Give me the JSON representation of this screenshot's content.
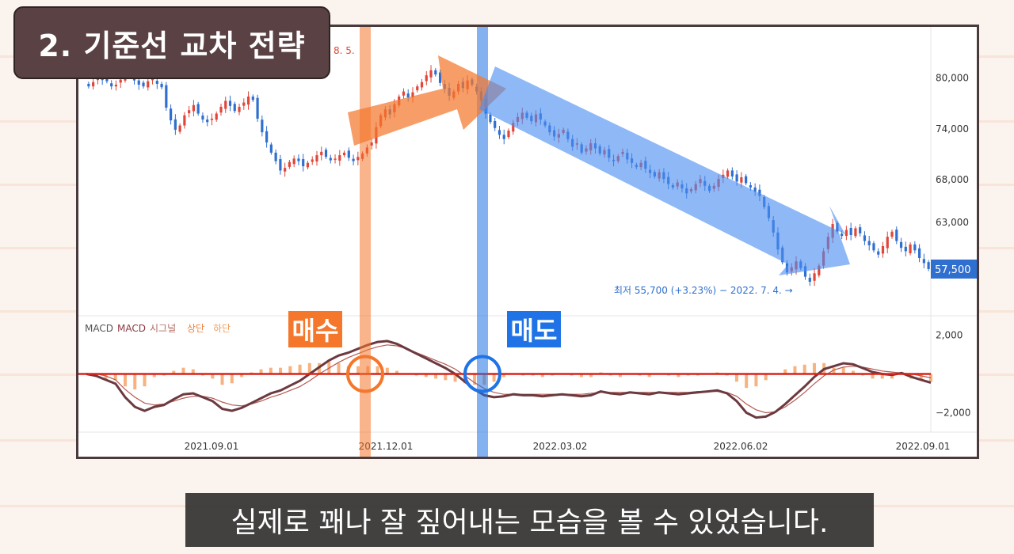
{
  "title": "2. 기준선 교차 전략",
  "subtitle": "실제로 꽤나 잘 짚어내는 모습을 볼 수 있었습니다.",
  "buy_label": "매수",
  "sell_label": "매도",
  "colors": {
    "up_candle": "#e0463a",
    "down_candle": "#2f6fcf",
    "buy_highlight": "#f4772c",
    "sell_highlight": "#1f73e6",
    "macd_line": "#6b3a40",
    "signal_line": "#b55a52",
    "baseline": "#d8231a",
    "histogram": "#f4a56a"
  },
  "chart_data": [
    {
      "type": "candlestick",
      "top_label_fragment": "8. 5.",
      "x_ticks": [
        "2021.09.01",
        "2021.12.01",
        "2022.03.02",
        "2022.06.02",
        "2022.09.01"
      ],
      "y_ticks": [
        80000,
        74000,
        68000,
        63000
      ],
      "y_tick_labels": [
        "80,000",
        "74,000",
        "68,000",
        "63,000"
      ],
      "ylim": [
        52000,
        86000
      ],
      "current_price": 57500,
      "current_price_label": "57,500",
      "low_annotation": "최저 55,700 (+3.23%) − 2022. 7. 4. →",
      "closes": [
        79000,
        79500,
        80000,
        79800,
        79600,
        79000,
        79200,
        79800,
        80100,
        80400,
        79700,
        79200,
        79000,
        79600,
        79900,
        79300,
        78900,
        76500,
        75000,
        73900,
        74400,
        75600,
        76200,
        76800,
        75800,
        75100,
        74800,
        75200,
        75800,
        76600,
        77300,
        76700,
        76100,
        76600,
        77100,
        77800,
        77400,
        75200,
        73600,
        72400,
        71200,
        70200,
        69100,
        69400,
        70100,
        70500,
        70200,
        69600,
        70000,
        70400,
        70900,
        71300,
        70700,
        70300,
        70500,
        70900,
        71200,
        70600,
        70200,
        70700,
        71100,
        71800,
        72400,
        74200,
        75600,
        76300,
        75700,
        76900,
        77800,
        78400,
        77700,
        78300,
        79000,
        79500,
        80300,
        80900,
        80400,
        79400,
        78700,
        77900,
        78400,
        79300,
        78800,
        79700,
        79200,
        78400,
        77300,
        75800,
        74800,
        74100,
        73300,
        72800,
        73800,
        74700,
        75400,
        75900,
        75300,
        74900,
        75700,
        75100,
        74400,
        73600,
        73100,
        73400,
        73900,
        72800,
        71900,
        72300,
        71200,
        71700,
        72300,
        71700,
        71100,
        71500,
        70600,
        70200,
        70800,
        71300,
        70400,
        70000,
        69500,
        70000,
        69300,
        68800,
        68400,
        68900,
        68100,
        67500,
        67100,
        67700,
        67000,
        66400,
        66900,
        67500,
        68100,
        67300,
        66700,
        67300,
        68100,
        68600,
        69100,
        68400,
        67800,
        68300,
        67600,
        67100,
        66600,
        66100,
        64800,
        63500,
        61800,
        59800,
        58300,
        57100,
        57700,
        58400,
        57600,
        56600,
        56000,
        57000,
        57900,
        59600,
        61300,
        62800,
        61900,
        61400,
        62100,
        61500,
        62300,
        61700,
        60800,
        60300,
        59700,
        59200,
        60200,
        61300,
        61900,
        60800,
        60000,
        59600,
        60400,
        59700,
        58800,
        58200,
        57500
      ]
    },
    {
      "type": "line",
      "title_items": [
        "MACD",
        "MACD",
        "시그널",
        "상단",
        "하단"
      ],
      "y_ticks": [
        2000,
        -2000
      ],
      "y_tick_labels": [
        "2,000",
        "−2,000"
      ],
      "ylim": [
        -3000,
        3000
      ],
      "series": [
        {
          "name": "MACD",
          "values": [
            0,
            -100,
            -300,
            -500,
            -1200,
            -1700,
            -1900,
            -1700,
            -1600,
            -1300,
            -1050,
            -1000,
            -1200,
            -1400,
            -1800,
            -1900,
            -1750,
            -1500,
            -1250,
            -1000,
            -850,
            -600,
            -350,
            0,
            350,
            700,
            950,
            1100,
            1300,
            1500,
            1650,
            1700,
            1550,
            1300,
            1050,
            800,
            550,
            300,
            0,
            -400,
            -800,
            -1100,
            -1200,
            -1150,
            -1050,
            -1100,
            -1100,
            -1150,
            -1100,
            -1050,
            -1100,
            -1150,
            -1100,
            -900,
            -1000,
            -1050,
            -950,
            -1000,
            -1050,
            -950,
            -1000,
            -1050,
            -1000,
            -950,
            -900,
            -850,
            -1000,
            -1400,
            -2000,
            -2250,
            -2200,
            -1950,
            -1550,
            -1100,
            -650,
            -150,
            250,
            400,
            550,
            500,
            300,
            100,
            0,
            -50,
            50,
            -150,
            -300,
            -450
          ]
        },
        {
          "name": "시그널",
          "values": [
            0,
            0,
            -100,
            -300,
            -800,
            -1200,
            -1500,
            -1600,
            -1550,
            -1400,
            -1250,
            -1150,
            -1150,
            -1250,
            -1450,
            -1600,
            -1650,
            -1550,
            -1400,
            -1200,
            -1050,
            -850,
            -650,
            -350,
            0,
            300,
            600,
            850,
            1050,
            1250,
            1400,
            1500,
            1450,
            1300,
            1100,
            900,
            700,
            500,
            250,
            -100,
            -450,
            -750,
            -950,
            -1050,
            -1050,
            -1050,
            -1050,
            -1050,
            -1050,
            -1050,
            -1050,
            -1050,
            -1000,
            -950,
            -950,
            -950,
            -950,
            -950,
            -950,
            -950,
            -950,
            -950,
            -950,
            -900,
            -900,
            -900,
            -950,
            -1150,
            -1550,
            -1850,
            -2000,
            -1950,
            -1700,
            -1350,
            -950,
            -500,
            -100,
            200,
            350,
            400,
            350,
            250,
            150,
            100,
            50,
            0,
            -100,
            -200
          ]
        }
      ]
    }
  ]
}
